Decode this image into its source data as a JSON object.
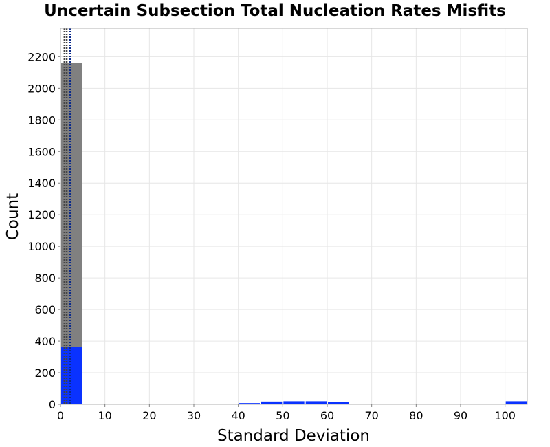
{
  "chart_data": {
    "type": "bar",
    "title": "Uncertain Subsection Total Nucleation Rates Misfits",
    "xlabel": "Standard Deviation",
    "ylabel": "Count",
    "xlim": [
      0,
      105
    ],
    "ylim": [
      0,
      2380
    ],
    "xticks": [
      0,
      10,
      20,
      30,
      40,
      50,
      60,
      70,
      80,
      90,
      100
    ],
    "yticks": [
      0,
      200,
      400,
      600,
      800,
      1000,
      1200,
      1400,
      1600,
      1800,
      2000,
      2200
    ],
    "grid": true,
    "legend": "none",
    "bin_width": 5,
    "series": [
      {
        "color": "#808080",
        "bins": [
          {
            "x0": 0,
            "x1": 5,
            "count": 2160
          }
        ]
      },
      {
        "color": "#0a32ff",
        "bins": [
          {
            "x0": 0,
            "x1": 5,
            "count": 365
          },
          {
            "x0": 40,
            "x1": 45,
            "count": 8
          },
          {
            "x0": 45,
            "x1": 50,
            "count": 18
          },
          {
            "x0": 50,
            "x1": 55,
            "count": 20
          },
          {
            "x0": 55,
            "x1": 60,
            "count": 20
          },
          {
            "x0": 60,
            "x1": 65,
            "count": 15
          },
          {
            "x0": 65,
            "x1": 70,
            "count": 4
          },
          {
            "x0": 100,
            "x1": 105,
            "count": 20
          }
        ]
      }
    ],
    "vlines": [
      {
        "x": 0.9,
        "color": "#444444"
      },
      {
        "x": 1.4,
        "color": "#444444"
      },
      {
        "x": 2.2,
        "color": "#0a2a8c"
      }
    ]
  }
}
